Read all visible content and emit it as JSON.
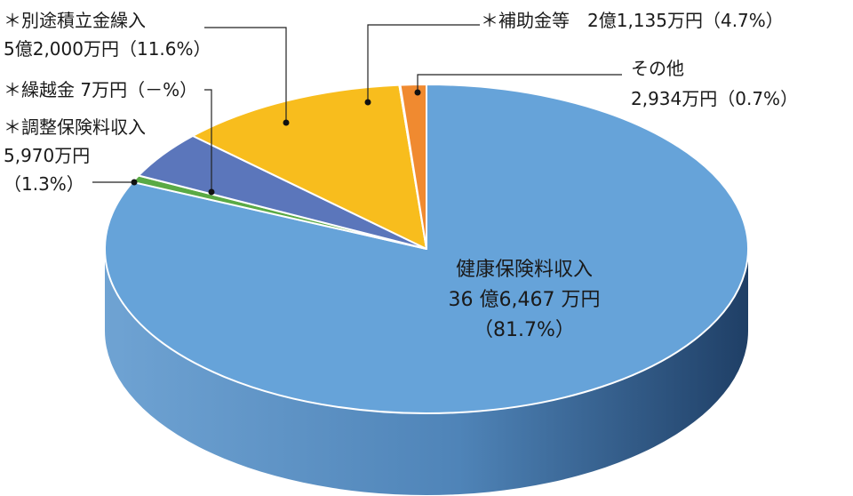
{
  "chart_data": {
    "type": "pie",
    "slices": [
      {
        "key": "health",
        "label": "健康保険料収入",
        "amount": "36 億6,467 万円",
        "percent_label": "（81.7%）",
        "value": 81.7,
        "color": "#66a3d9"
      },
      {
        "key": "other",
        "label": "その他",
        "amount": "2,934万円（0.7%）",
        "percent_label": "",
        "value": 0.7,
        "color": "#5aaa45"
      },
      {
        "key": "subsidy",
        "label": "＊補助金等　2億1,135万円（4.7%）",
        "amount": "",
        "percent_label": "",
        "value": 4.7,
        "color": "#5b76bb"
      },
      {
        "key": "reserve",
        "label": "＊別途積立金繰入",
        "amount": "5億2,000万円（11.6%）",
        "percent_label": "",
        "value": 11.6,
        "color": "#f8bd1d"
      },
      {
        "key": "carryover",
        "label": "＊繰越金 7万円（－%）",
        "amount": "",
        "percent_label": "",
        "value": 0.05,
        "color": "#f08a30"
      },
      {
        "key": "adjust",
        "label": "＊調整保険料収入",
        "amount": "5,970万円",
        "percent_label": "（1.3%）",
        "value": 1.3,
        "color": "#f08a30"
      }
    ]
  }
}
